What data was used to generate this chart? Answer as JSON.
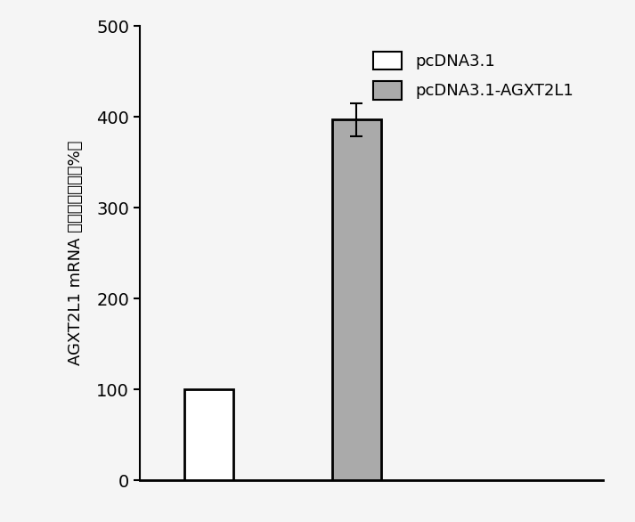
{
  "categories": [
    "pcDNA3.1",
    "pcDNA3.1-AGXT2L1"
  ],
  "values": [
    100,
    397
  ],
  "errors": [
    0,
    18
  ],
  "bar_colors": [
    "#ffffff",
    "#aaaaaa"
  ],
  "bar_edgecolors": [
    "#000000",
    "#000000"
  ],
  "bar_width": 0.5,
  "ylim": [
    0,
    500
  ],
  "yticks": [
    0,
    100,
    200,
    300,
    400,
    500
  ],
  "ylabel_line1": "AGXT2L1 mRNA 的相对表达量（%）",
  "legend_labels": [
    "pcDNA3.1",
    "pcDNA3.1-AGXT2L1"
  ],
  "legend_colors": [
    "#ffffff",
    "#aaaaaa"
  ],
  "legend_edgecolors": [
    "#000000",
    "#000000"
  ],
  "background_color": "#f5f5f5",
  "bar_positions": [
    1,
    2.5
  ],
  "xlim": [
    0.3,
    5.0
  ],
  "errorbar_capsize": 5,
  "errorbar_linewidth": 1.5,
  "spine_linewidth": 1.5,
  "bottom_spine_linewidth": 2.0,
  "tick_fontsize": 14,
  "legend_fontsize": 13
}
